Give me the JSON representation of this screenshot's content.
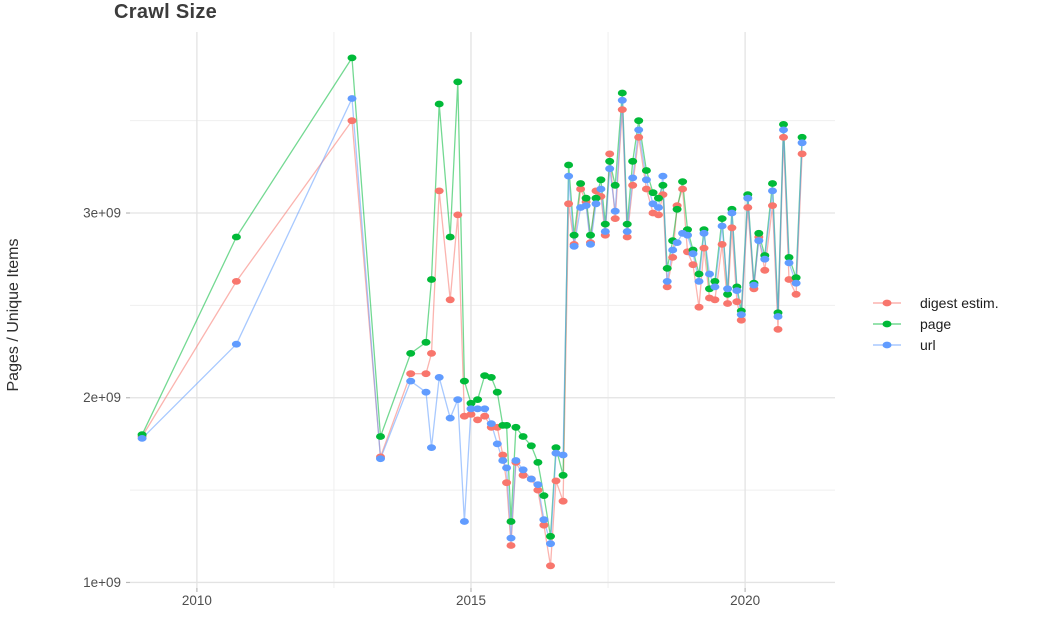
{
  "page": {
    "title": "Crawl Size"
  },
  "chart_data": {
    "type": "line",
    "title": "Crawl Size",
    "xlabel": "",
    "ylabel": "Pages / Unique Items",
    "y_unit": "1e9 (axis labels in scientific notation)",
    "grid": true,
    "legend_position": "right",
    "x_range": [
      2008.78,
      2021.64
    ],
    "y_range": [
      0.97,
      3.98
    ],
    "x_ticks": [
      {
        "value": 2010,
        "label": "2010"
      },
      {
        "value": 2015,
        "label": "2015"
      },
      {
        "value": 2020,
        "label": "2020"
      }
    ],
    "x_minor_ticks": [
      2012.5,
      2017.5
    ],
    "y_ticks": [
      {
        "value": 1.0,
        "label": "1e+09"
      },
      {
        "value": 2.0,
        "label": "2e+09"
      },
      {
        "value": 3.0,
        "label": "3e+09"
      }
    ],
    "y_minor_ticks": [
      1.5,
      2.5,
      3.5
    ],
    "x": [
      2009.0,
      2010.72,
      2012.83,
      2013.35,
      2013.9,
      2014.18,
      2014.28,
      2014.42,
      2014.62,
      2014.76,
      2014.88,
      2015.0,
      2015.12,
      2015.25,
      2015.37,
      2015.48,
      2015.58,
      2015.65,
      2015.73,
      2015.82,
      2015.95,
      2016.1,
      2016.22,
      2016.33,
      2016.45,
      2016.55,
      2016.68,
      2016.78,
      2016.88,
      2017.0,
      2017.1,
      2017.18,
      2017.28,
      2017.37,
      2017.45,
      2017.53,
      2017.63,
      2017.76,
      2017.85,
      2017.95,
      2018.06,
      2018.2,
      2018.32,
      2018.42,
      2018.5,
      2018.58,
      2018.68,
      2018.76,
      2018.86,
      2018.95,
      2019.05,
      2019.16,
      2019.25,
      2019.35,
      2019.45,
      2019.58,
      2019.68,
      2019.76,
      2019.85,
      2019.93,
      2020.05,
      2020.16,
      2020.25,
      2020.36,
      2020.5,
      2020.6,
      2020.7,
      2020.8,
      2020.93,
      2021.04
    ],
    "series": [
      {
        "name": "digest estim.",
        "color": "#F8766D",
        "values": [
          1.79,
          2.63,
          3.5,
          1.68,
          2.13,
          2.13,
          2.24,
          3.12,
          2.53,
          2.99,
          1.9,
          1.91,
          1.88,
          1.9,
          1.84,
          1.84,
          1.69,
          1.54,
          1.2,
          1.65,
          1.58,
          1.56,
          1.5,
          1.31,
          1.09,
          1.55,
          1.44,
          3.05,
          2.83,
          3.13,
          3.06,
          2.84,
          3.12,
          3.09,
          2.88,
          3.32,
          2.97,
          3.56,
          2.87,
          3.15,
          3.41,
          3.13,
          3.0,
          2.99,
          3.1,
          2.6,
          2.76,
          3.04,
          3.13,
          2.79,
          2.72,
          2.49,
          2.81,
          2.54,
          2.53,
          2.83,
          2.51,
          2.92,
          2.52,
          2.42,
          3.03,
          2.59,
          2.87,
          2.69,
          3.04,
          2.37,
          3.41,
          2.64,
          2.56,
          3.32
        ]
      },
      {
        "name": "page",
        "color": "#00BA38",
        "values": [
          1.8,
          2.87,
          3.84,
          1.79,
          2.24,
          2.3,
          2.64,
          3.59,
          2.87,
          3.71,
          2.09,
          1.97,
          1.99,
          2.12,
          2.11,
          2.03,
          1.85,
          1.85,
          1.33,
          1.84,
          1.79,
          1.74,
          1.65,
          1.47,
          1.25,
          1.73,
          1.58,
          3.26,
          2.88,
          3.16,
          3.08,
          2.88,
          3.08,
          3.18,
          2.94,
          3.28,
          3.15,
          3.65,
          2.94,
          3.28,
          3.5,
          3.23,
          3.11,
          3.08,
          3.15,
          2.7,
          2.85,
          3.02,
          3.17,
          2.91,
          2.8,
          2.67,
          2.91,
          2.59,
          2.63,
          2.97,
          2.56,
          3.02,
          2.6,
          2.47,
          3.1,
          2.62,
          2.89,
          2.77,
          3.16,
          2.46,
          3.48,
          2.76,
          2.65,
          3.41
        ]
      },
      {
        "name": "url",
        "color": "#619CFF",
        "values": [
          1.78,
          2.29,
          3.62,
          1.67,
          2.09,
          2.03,
          1.73,
          2.11,
          1.89,
          1.99,
          1.33,
          1.94,
          1.94,
          1.94,
          1.86,
          1.75,
          1.66,
          1.62,
          1.24,
          1.66,
          1.61,
          1.56,
          1.53,
          1.34,
          1.21,
          1.7,
          1.69,
          3.2,
          2.82,
          3.03,
          3.04,
          2.83,
          3.05,
          3.13,
          2.9,
          3.24,
          3.01,
          3.61,
          2.9,
          3.19,
          3.45,
          3.18,
          3.05,
          3.03,
          3.2,
          2.63,
          2.8,
          2.84,
          2.89,
          2.88,
          2.78,
          2.63,
          2.89,
          2.67,
          2.6,
          2.93,
          2.59,
          3.0,
          2.58,
          2.45,
          3.08,
          2.61,
          2.85,
          2.75,
          3.12,
          2.44,
          3.45,
          2.73,
          2.62,
          3.38
        ]
      }
    ],
    "style": {
      "background": "#ffffff",
      "grid_major_color": "#e3e3e3",
      "grid_minor_color": "#efefef",
      "tick_mark_color": "#b8b8b8",
      "tick_label_color": "#4e4e4e",
      "title_color": "#3c3c3c",
      "line_opacity": 0.55
    }
  }
}
